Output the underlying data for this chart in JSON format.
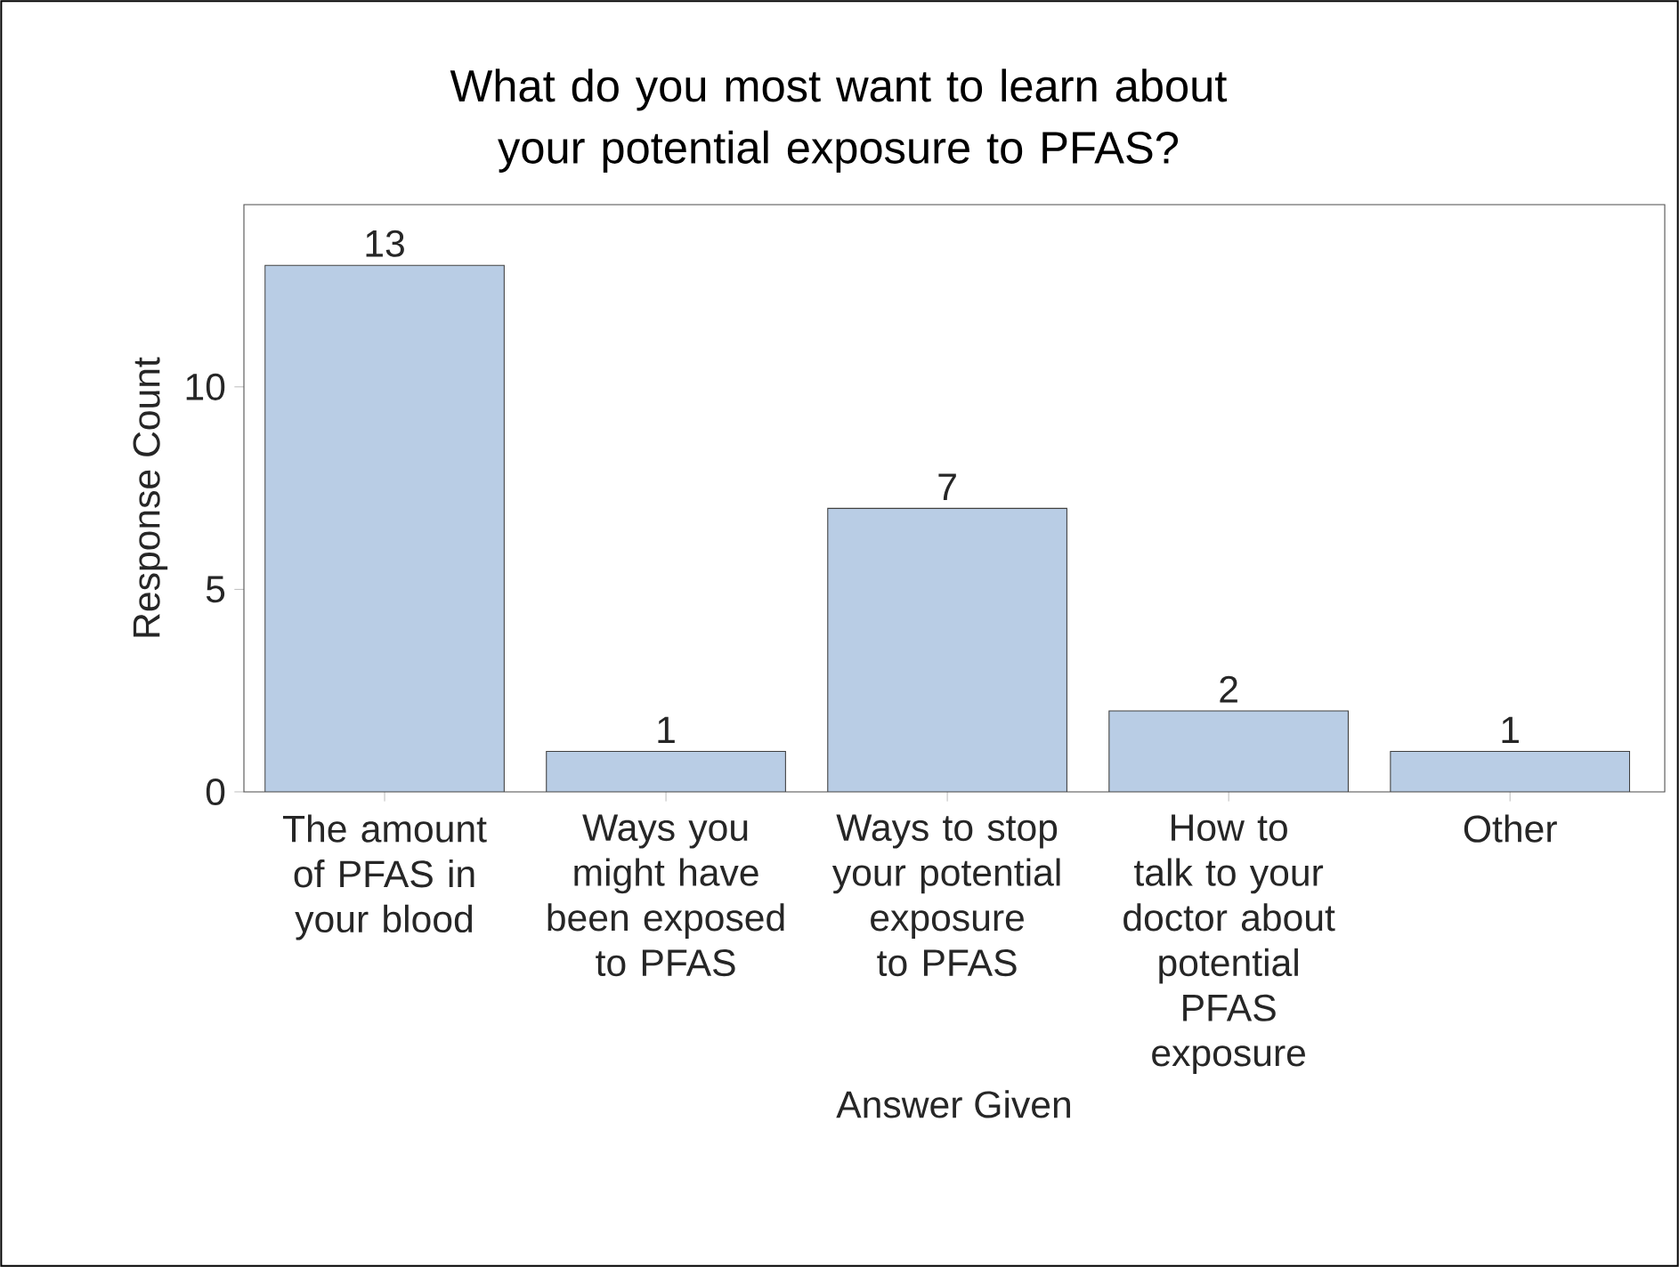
{
  "chart_data": {
    "type": "bar",
    "title": "What do you most want to learn about your potential exposure to PFAS?",
    "xlabel": "Answer Given",
    "ylabel": "Response Count",
    "categories": [
      "The amount of PFAS in your blood",
      "Ways you might have been exposed to PFAS",
      "Ways to stop your potential exposure to PFAS",
      "How to talk to your doctor about potential PFAS exposure",
      "Other"
    ],
    "values": [
      13,
      1,
      7,
      2,
      1
    ],
    "color": "#b9cde5",
    "ylim": [
      0,
      14.5
    ],
    "yticks": [
      0,
      5,
      10
    ],
    "data_labels": true,
    "grid": false
  }
}
